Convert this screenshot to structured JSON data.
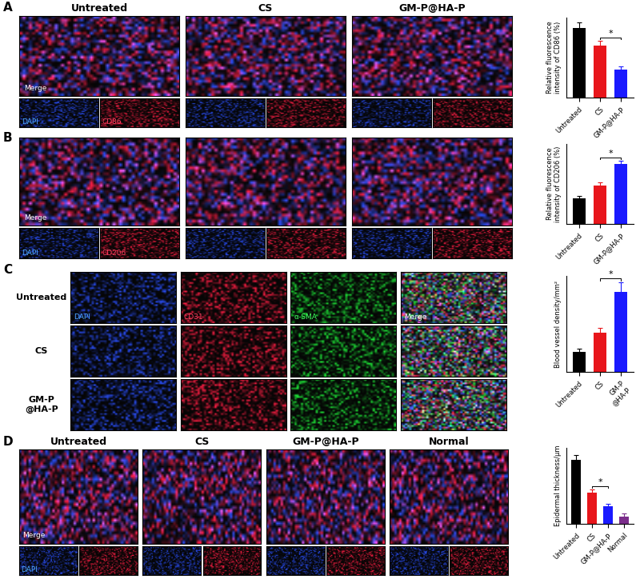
{
  "panel_labels": [
    "A",
    "B",
    "C",
    "D"
  ],
  "image_panels": {
    "A": {
      "columns": [
        "Untreated",
        "CS",
        "GM-P@HA-P"
      ],
      "merge_label": "Merge",
      "channels": [
        "DAPI",
        "CD86"
      ]
    },
    "B": {
      "merge_label": "Merge",
      "channels": [
        "DAPI",
        "CD206"
      ]
    },
    "C": {
      "rows": [
        "Untreated",
        "CS",
        "GM-P\n@HA-P"
      ],
      "channels": [
        "DAPI",
        "CD31",
        "α-SMA",
        "Merge"
      ]
    },
    "D": {
      "columns": [
        "Untreated",
        "CS",
        "GM-P@HA-P",
        "Normal"
      ],
      "merge_label": "Merge",
      "channels": [
        "DAPI"
      ]
    }
  },
  "chart_data": [
    {
      "type": "bar",
      "ylabel": "Relative fluorescence\nintensity of CD86 (%)",
      "categories": [
        "Untreated",
        "CS",
        "GM-P@HA-P"
      ],
      "values": [
        87,
        65,
        35
      ],
      "errors": [
        7,
        6,
        4
      ],
      "colors": [
        "#000000",
        "#e8161b",
        "#1a1aff"
      ],
      "ylim": [
        0,
        100
      ],
      "tick_labels": "x",
      "annotations": [
        {
          "text": "*",
          "between": [
            "CS",
            "GM-P@HA-P"
          ]
        }
      ]
    },
    {
      "type": "bar",
      "ylabel": "Relative fluorescence\nintensity of CD206 (%)",
      "categories": [
        "Untreated",
        "CS",
        "GM-P@HA-P"
      ],
      "values": [
        32,
        48,
        75
      ],
      "errors": [
        3,
        4,
        4
      ],
      "colors": [
        "#000000",
        "#e8161b",
        "#1a1aff"
      ],
      "ylim": [
        0,
        100
      ],
      "tick_labels": "x",
      "annotations": [
        {
          "text": "*",
          "between": [
            "CS",
            "GM-P@HA-P"
          ]
        }
      ]
    },
    {
      "type": "bar",
      "ylabel": "Blood vessel density/mm²",
      "categories": [
        "Untreated",
        "CS",
        "GM-P\n@HA-P"
      ],
      "values": [
        38,
        73,
        150
      ],
      "errors": [
        6,
        10,
        18
      ],
      "colors": [
        "#000000",
        "#e8161b",
        "#1a1aff"
      ],
      "ylim": [
        0,
        180
      ],
      "tick_labels": "x",
      "annotations": [
        {
          "text": "*",
          "between": [
            "CS",
            "GM-P\n@HA-P"
          ]
        }
      ]
    },
    {
      "type": "bar",
      "ylabel": "Epidermal thickness/μm",
      "categories": [
        "Untreated",
        "CS",
        "GM-P@HA-P",
        "Normal"
      ],
      "values": [
        185,
        90,
        50,
        22
      ],
      "errors": [
        15,
        10,
        8,
        7
      ],
      "colors": [
        "#000000",
        "#e8161b",
        "#1a1aff",
        "#7b2d8b"
      ],
      "ylim": [
        0,
        220
      ],
      "tick_labels": "x",
      "annotations": [
        {
          "text": "*",
          "between": [
            "CS",
            "GM-P@HA-P"
          ]
        }
      ]
    }
  ]
}
